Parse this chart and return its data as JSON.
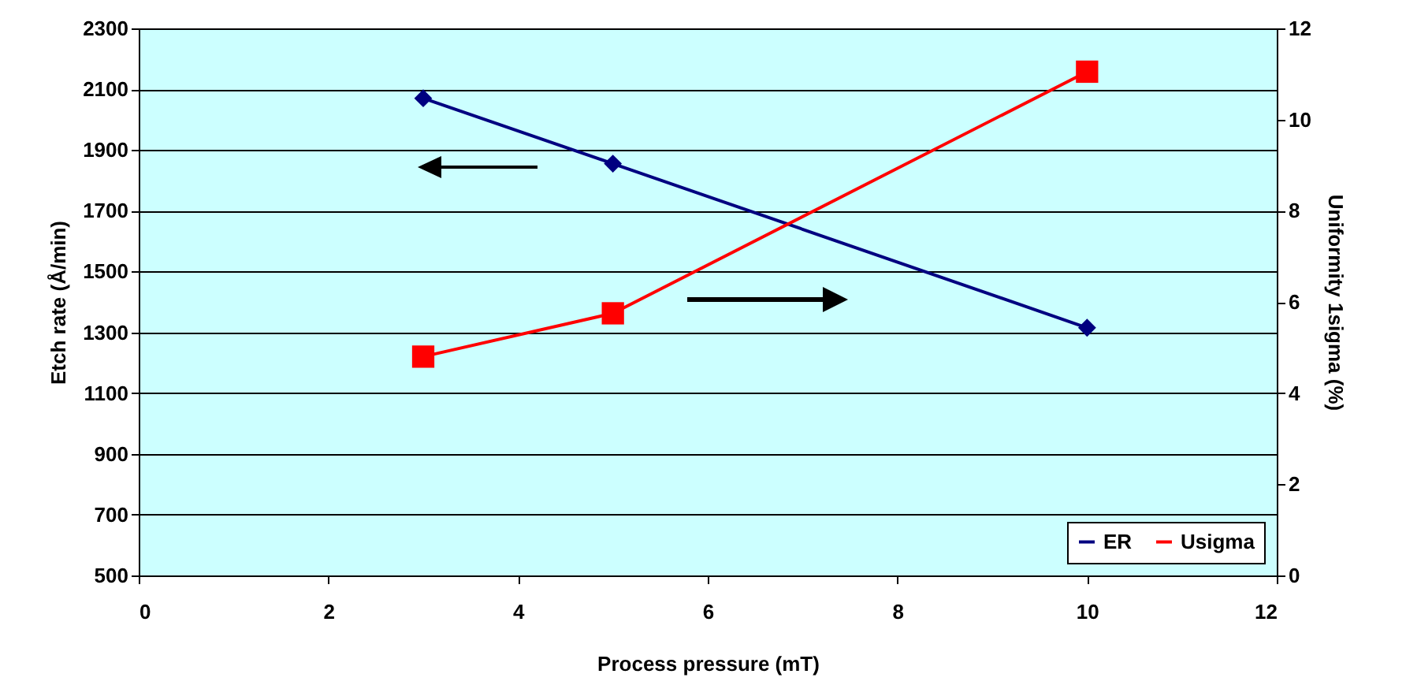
{
  "chart_data": {
    "type": "line",
    "xlabel": "Process pressure (mT)",
    "ylabel": "Etch rate (Å/min)",
    "y2label": "Uniformity 1sigma (%)",
    "x": [
      3,
      5,
      10
    ],
    "series": [
      {
        "name": "ER",
        "color": "#000080",
        "marker": "diamond",
        "values": [
          2070,
          1855,
          1315
        ]
      },
      {
        "name": "Usigma",
        "color": "#ff0000",
        "marker": "square",
        "axis": "y2",
        "values": [
          4.8,
          5.75,
          11.05
        ]
      }
    ],
    "xlim": [
      0,
      12
    ],
    "xticks": [
      0,
      2,
      4,
      6,
      8,
      10,
      12
    ],
    "ylim": [
      500,
      2300
    ],
    "yticks": [
      500,
      700,
      900,
      1100,
      1300,
      1500,
      1700,
      1900,
      2100,
      2300
    ],
    "y2lim": [
      0,
      12
    ],
    "y2ticks": [
      0,
      2,
      4,
      6,
      8,
      10,
      12
    ],
    "grid": "y",
    "legend": "bottom right",
    "line_style": "solid"
  }
}
